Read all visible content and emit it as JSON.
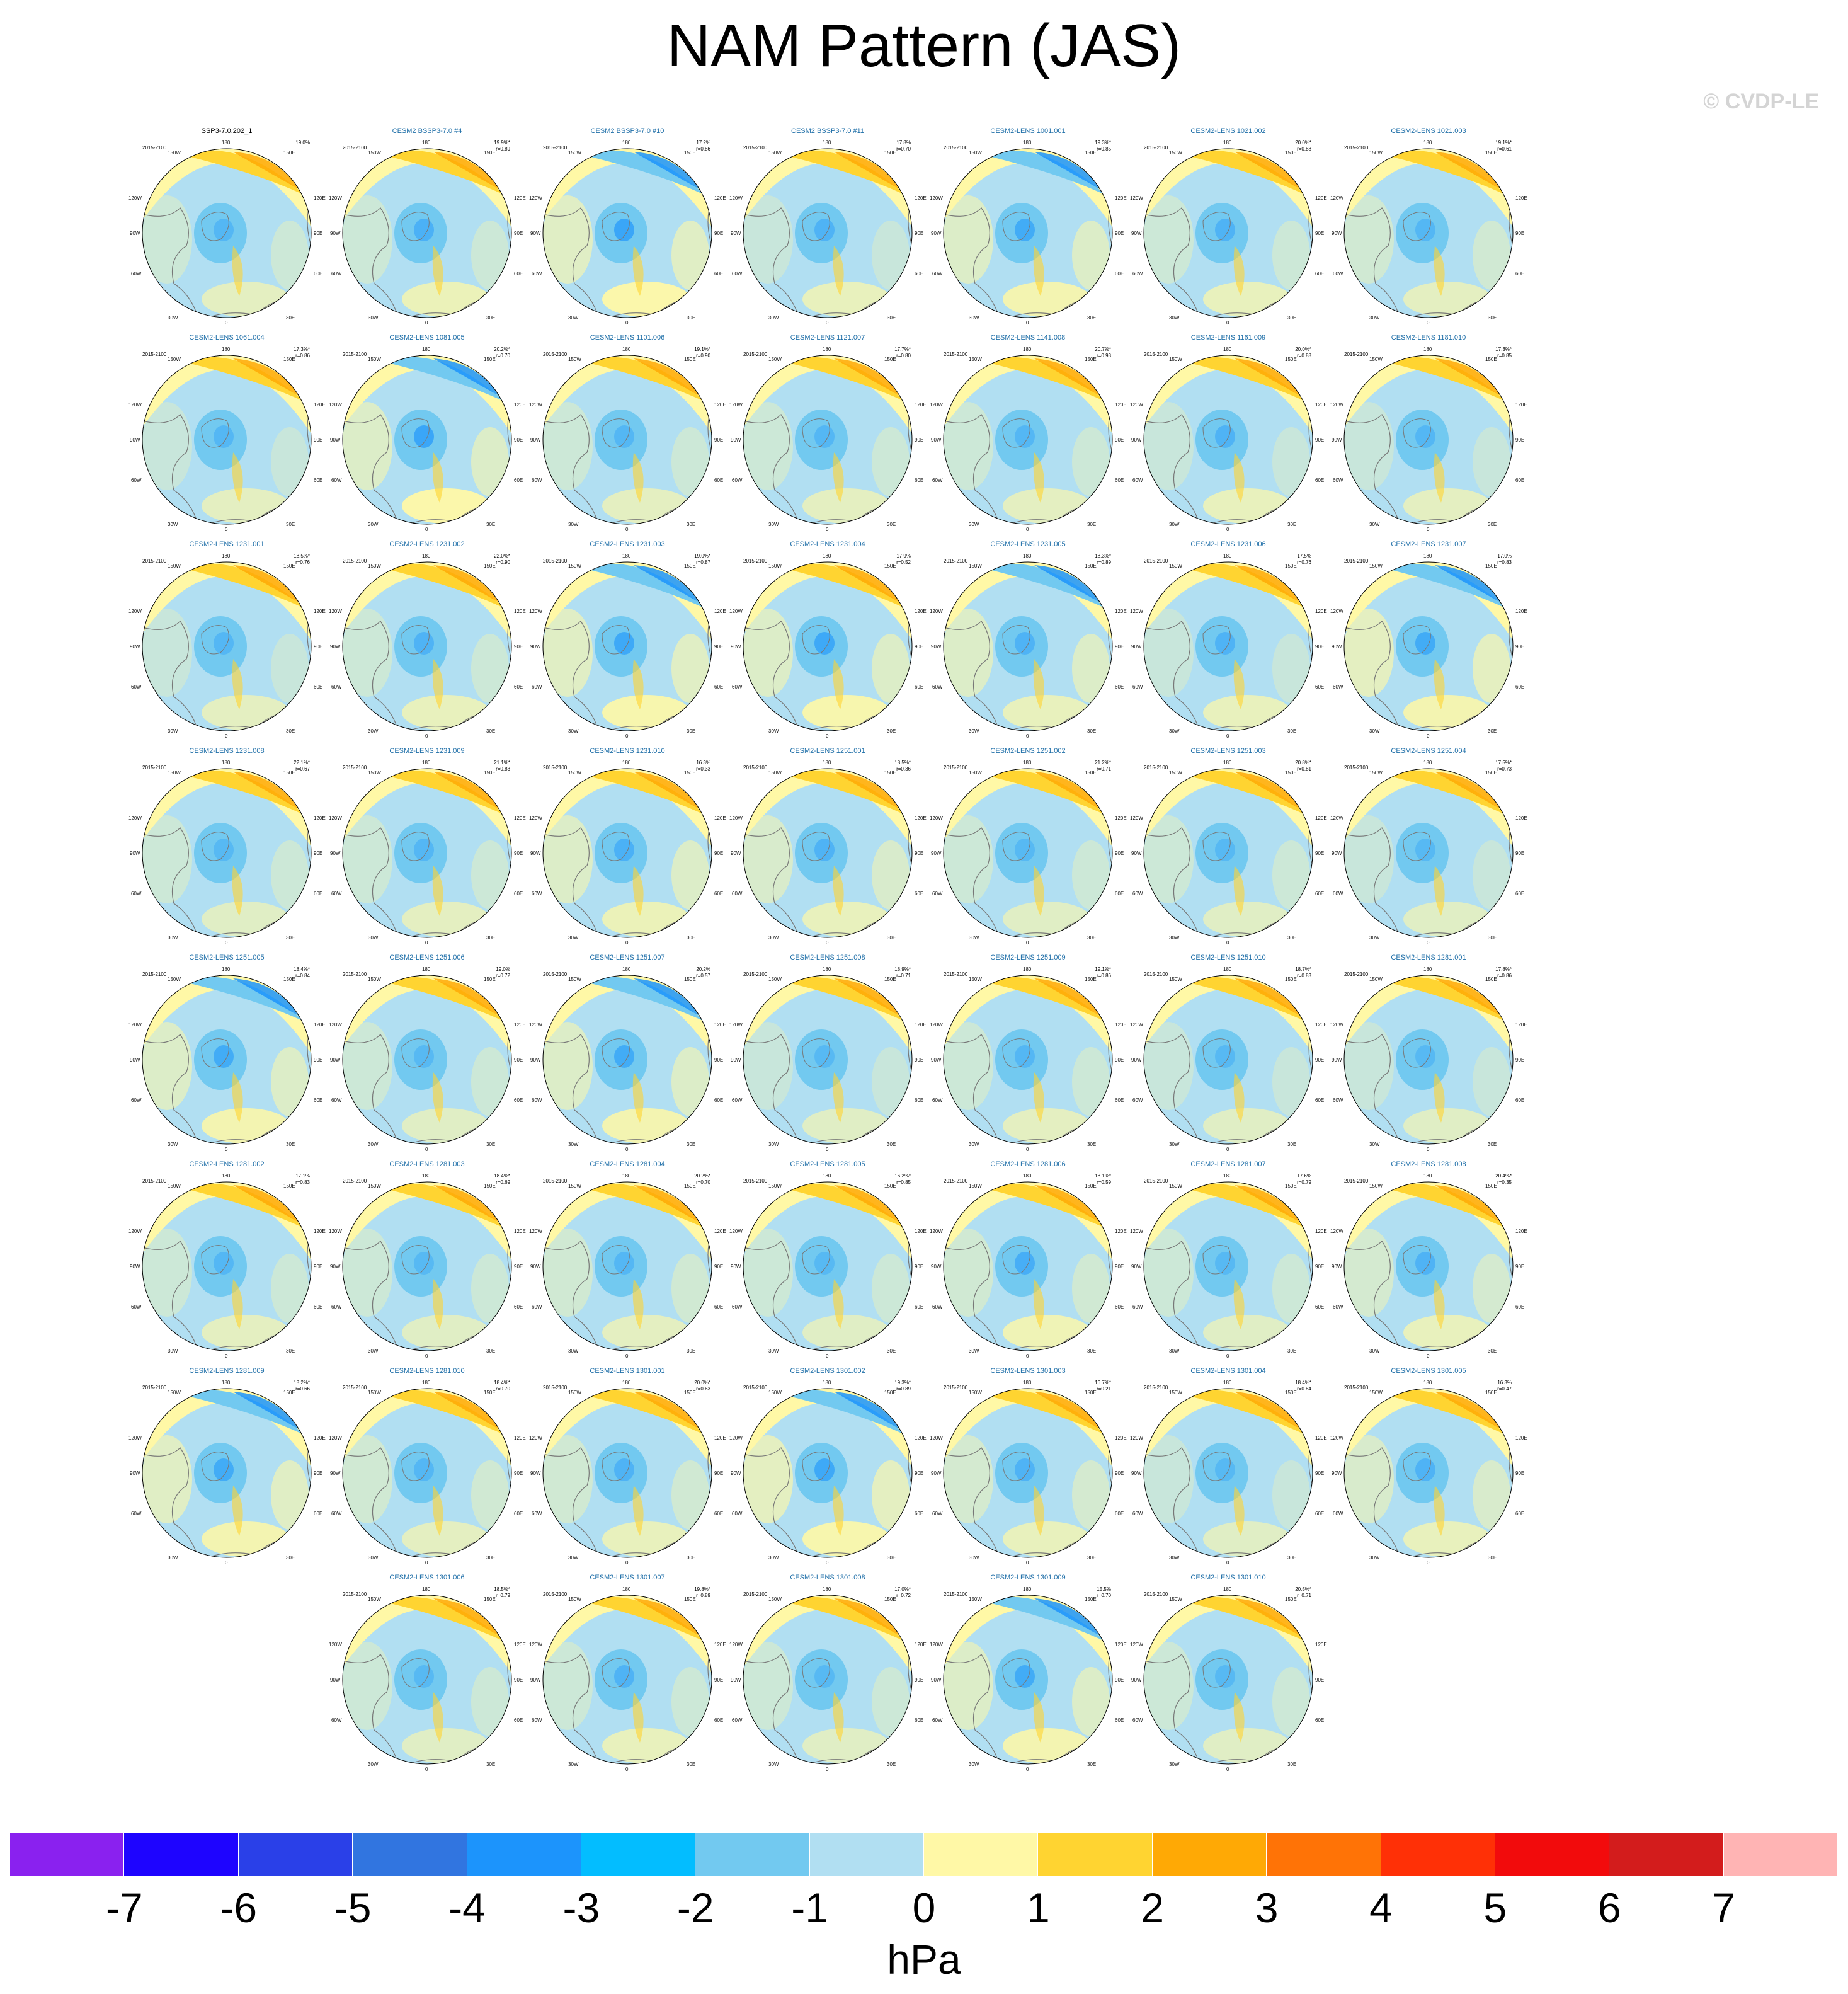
{
  "title": "NAM Pattern (JAS)",
  "watermark": "© CVDP-LE",
  "period": "2015-2100",
  "map_labels": {
    "top": "180",
    "ul": "150W",
    "ur": "150E",
    "ml": "120W",
    "mr": "120E",
    "l": "90W",
    "r": "90E",
    "ll": "60W",
    "lr": "60E",
    "bl": "30W",
    "br": "30E",
    "bottom": "0"
  },
  "panels": [
    {
      "title": "SSP3-7.0.202_1",
      "pct": "19.0%",
      "r": "",
      "obs": true,
      "fill": [
        0.72,
        0.35,
        0.35
      ]
    },
    {
      "title": "CESM2 BSSP3-7.0 #4",
      "pct": "19.9%*",
      "r": "r=0.89",
      "fill": [
        0.72,
        0.35,
        0.45
      ]
    },
    {
      "title": "CESM2 BSSP3-7.0 #10",
      "pct": "17.2%",
      "r": "r=0.86",
      "fill": [
        0.2,
        0.6,
        0.65
      ]
    },
    {
      "title": "CESM2 BSSP3-7.0 #11",
      "pct": "17.8%",
      "r": "r=0.70",
      "fill": [
        0.72,
        0.3,
        0.4
      ]
    },
    {
      "title": "CESM2-LENS 1001.001",
      "pct": "19.3%*",
      "r": "r=0.85",
      "fill": [
        0.25,
        0.55,
        0.55
      ]
    },
    {
      "title": "CESM2-LENS 1021.002",
      "pct": "20.0%*",
      "r": "r=0.88",
      "fill": [
        0.72,
        0.35,
        0.4
      ]
    },
    {
      "title": "CESM2-LENS 1021.003",
      "pct": "19.1%*",
      "r": "r=0.61",
      "fill": [
        0.72,
        0.4,
        0.35
      ]
    },
    {
      "title": "CESM2-LENS 1061.004",
      "pct": "17.3%*",
      "r": "r=0.86",
      "fill": [
        0.72,
        0.3,
        0.35
      ]
    },
    {
      "title": "CESM2-LENS 1081.005",
      "pct": "20.2%*",
      "r": "r=0.70",
      "fill": [
        0.2,
        0.55,
        0.65
      ]
    },
    {
      "title": "CESM2-LENS 1101.006",
      "pct": "19.1%*",
      "r": "r=0.90",
      "fill": [
        0.72,
        0.35,
        0.35
      ]
    },
    {
      "title": "CESM2-LENS 1121.007",
      "pct": "17.7%*",
      "r": "r=0.80",
      "fill": [
        0.72,
        0.35,
        0.35
      ]
    },
    {
      "title": "CESM2-LENS 1141.008",
      "pct": "20.7%*",
      "r": "r=0.93",
      "fill": [
        0.72,
        0.35,
        0.35
      ]
    },
    {
      "title": "CESM2-LENS 1161.009",
      "pct": "20.0%*",
      "r": "r=0.88",
      "fill": [
        0.72,
        0.3,
        0.4
      ]
    },
    {
      "title": "CESM2-LENS 1181.010",
      "pct": "17.3%*",
      "r": "r=0.85",
      "fill": [
        0.72,
        0.3,
        0.35
      ]
    },
    {
      "title": "CESM2-LENS 1231.001",
      "pct": "18.5%*",
      "r": "r=0.76",
      "fill": [
        0.72,
        0.3,
        0.35
      ]
    },
    {
      "title": "CESM2-LENS 1231.002",
      "pct": "22.0%*",
      "r": "r=0.90",
      "fill": [
        0.72,
        0.35,
        0.4
      ]
    },
    {
      "title": "CESM2-LENS 1231.003",
      "pct": "19.0%*",
      "r": "r=0.87",
      "fill": [
        0.25,
        0.6,
        0.6
      ]
    },
    {
      "title": "CESM2-LENS 1231.004",
      "pct": "17.9%",
      "r": "r=0.52",
      "fill": [
        0.55,
        0.55,
        0.6
      ]
    },
    {
      "title": "CESM2-LENS 1231.005",
      "pct": "18.3%*",
      "r": "r=0.89",
      "fill": [
        0.25,
        0.55,
        0.4
      ]
    },
    {
      "title": "CESM2-LENS 1231.006",
      "pct": "17.5%",
      "r": "r=0.76",
      "fill": [
        0.65,
        0.3,
        0.4
      ]
    },
    {
      "title": "CESM2-LENS 1231.007",
      "pct": "17.0%",
      "r": "r=0.83",
      "fill": [
        0.3,
        0.65,
        0.55
      ]
    },
    {
      "title": "CESM2-LENS 1231.008",
      "pct": "22.1%*",
      "r": "r=0.67",
      "fill": [
        0.72,
        0.35,
        0.3
      ]
    },
    {
      "title": "CESM2-LENS 1231.009",
      "pct": "21.1%*",
      "r": "r=0.83",
      "fill": [
        0.72,
        0.35,
        0.35
      ]
    },
    {
      "title": "CESM2-LENS 1231.010",
      "pct": "16.3%",
      "r": "r=0.33",
      "fill": [
        0.6,
        0.55,
        0.45
      ]
    },
    {
      "title": "CESM2-LENS 1251.001",
      "pct": "18.5%*",
      "r": "r=0.36",
      "fill": [
        0.6,
        0.5,
        0.4
      ]
    },
    {
      "title": "CESM2-LENS 1251.002",
      "pct": "21.2%*",
      "r": "r=0.71",
      "fill": [
        0.72,
        0.35,
        0.3
      ]
    },
    {
      "title": "CESM2-LENS 1251.003",
      "pct": "20.8%*",
      "r": "r=0.81",
      "fill": [
        0.72,
        0.35,
        0.3
      ]
    },
    {
      "title": "CESM2-LENS 1251.004",
      "pct": "17.5%*",
      "r": "r=0.73",
      "fill": [
        0.72,
        0.3,
        0.3
      ]
    },
    {
      "title": "CESM2-LENS 1251.005",
      "pct": "18.4%*",
      "r": "r=0.84",
      "fill": [
        0.25,
        0.55,
        0.55
      ]
    },
    {
      "title": "CESM2-LENS 1251.006",
      "pct": "19.0%",
      "r": "r=0.72",
      "fill": [
        0.65,
        0.35,
        0.3
      ]
    },
    {
      "title": "CESM2-LENS 1251.007",
      "pct": "20.2%",
      "r": "r=0.57",
      "fill": [
        0.4,
        0.55,
        0.55
      ]
    },
    {
      "title": "CESM2-LENS 1251.008",
      "pct": "18.9%*",
      "r": "r=0.71",
      "fill": [
        0.65,
        0.3,
        0.3
      ]
    },
    {
      "title": "CESM2-LENS 1251.009",
      "pct": "19.1%*",
      "r": "r=0.86",
      "fill": [
        0.72,
        0.35,
        0.35
      ]
    },
    {
      "title": "CESM2-LENS 1251.010",
      "pct": "18.7%*",
      "r": "r=0.83",
      "fill": [
        0.65,
        0.3,
        0.3
      ]
    },
    {
      "title": "CESM2-LENS 1281.001",
      "pct": "17.8%*",
      "r": "r=0.86",
      "fill": [
        0.72,
        0.3,
        0.3
      ]
    },
    {
      "title": "CESM2-LENS 1281.002",
      "pct": "17.1%",
      "r": "r=0.83",
      "fill": [
        0.72,
        0.35,
        0.35
      ]
    },
    {
      "title": "CESM2-LENS 1281.003",
      "pct": "18.4%*",
      "r": "r=0.69",
      "fill": [
        0.72,
        0.35,
        0.3
      ]
    },
    {
      "title": "CESM2-LENS 1281.004",
      "pct": "20.2%*",
      "r": "r=0.70",
      "fill": [
        0.72,
        0.4,
        0.35
      ]
    },
    {
      "title": "CESM2-LENS 1281.005",
      "pct": "16.2%*",
      "r": "r=0.85",
      "fill": [
        0.72,
        0.35,
        0.3
      ]
    },
    {
      "title": "CESM2-LENS 1281.006",
      "pct": "18.1%*",
      "r": "r=0.59",
      "fill": [
        0.72,
        0.4,
        0.5
      ]
    },
    {
      "title": "CESM2-LENS 1281.007",
      "pct": "17.6%",
      "r": "r=0.79",
      "fill": [
        0.72,
        0.35,
        0.3
      ]
    },
    {
      "title": "CESM2-LENS 1281.008",
      "pct": "20.4%*",
      "r": "r=0.35",
      "fill": [
        0.6,
        0.45,
        0.4
      ]
    },
    {
      "title": "CESM2-LENS 1281.009",
      "pct": "18.2%*",
      "r": "r=0.66",
      "fill": [
        0.3,
        0.6,
        0.55
      ]
    },
    {
      "title": "CESM2-LENS 1281.010",
      "pct": "18.4%*",
      "r": "r=0.70",
      "fill": [
        0.72,
        0.4,
        0.35
      ]
    },
    {
      "title": "CESM2-LENS 1301.001",
      "pct": "20.0%*",
      "r": "r=0.63",
      "fill": [
        0.72,
        0.4,
        0.4
      ]
    },
    {
      "title": "CESM2-LENS 1301.002",
      "pct": "19.3%*",
      "r": "r=0.89",
      "fill": [
        0.3,
        0.65,
        0.6
      ]
    },
    {
      "title": "CESM2-LENS 1301.003",
      "pct": "16.7%*",
      "r": "r=0.21",
      "fill": [
        0.55,
        0.45,
        0.4
      ]
    },
    {
      "title": "CESM2-LENS 1301.004",
      "pct": "18.4%*",
      "r": "r=0.84",
      "fill": [
        0.72,
        0.3,
        0.3
      ]
    },
    {
      "title": "CESM2-LENS 1301.005",
      "pct": "16.3%",
      "r": "r=0.47",
      "fill": [
        0.6,
        0.5,
        0.4
      ]
    },
    {
      "title": "CESM2-LENS 1301.006",
      "pct": "18.5%*",
      "r": "r=0.79",
      "fill": [
        0.72,
        0.35,
        0.3
      ]
    },
    {
      "title": "CESM2-LENS 1301.007",
      "pct": "19.8%*",
      "r": "r=0.89",
      "fill": [
        0.72,
        0.35,
        0.4
      ]
    },
    {
      "title": "CESM2-LENS 1301.008",
      "pct": "17.0%*",
      "r": "r=0.72",
      "fill": [
        0.72,
        0.35,
        0.3
      ]
    },
    {
      "title": "CESM2-LENS 1301.009",
      "pct": "15.5%",
      "r": "r=0.70",
      "fill": [
        0.3,
        0.55,
        0.55
      ]
    },
    {
      "title": "CESM2-LENS 1301.010",
      "pct": "20.5%*",
      "r": "r=0.71",
      "fill": [
        0.72,
        0.35,
        0.3
      ]
    }
  ],
  "colorbar": {
    "units": "hPa",
    "ticks": [
      "-7",
      "-6",
      "-5",
      "-4",
      "-3",
      "-2",
      "-1",
      "0",
      "1",
      "2",
      "3",
      "4",
      "5",
      "6",
      "7"
    ],
    "colors": [
      "#8a21ef",
      "#1e04ff",
      "#2a40e8",
      "#3175e0",
      "#1c94fc",
      "#03bdff",
      "#72c9f0",
      "#b1dff2",
      "#fff8a6",
      "#ffd431",
      "#ffa905",
      "#ff7306",
      "#ff3006",
      "#f20b0c",
      "#d31c1c",
      "#ffb4b4"
    ]
  },
  "palette": {
    "ocean_blue": "#b1dff2",
    "light_yellow": "#fff8a6",
    "yellow": "#ffd431",
    "orange": "#ffa905",
    "mid_blue": "#72c9f0",
    "deep_blue": "#1c94fc",
    "coast": "#777777"
  }
}
